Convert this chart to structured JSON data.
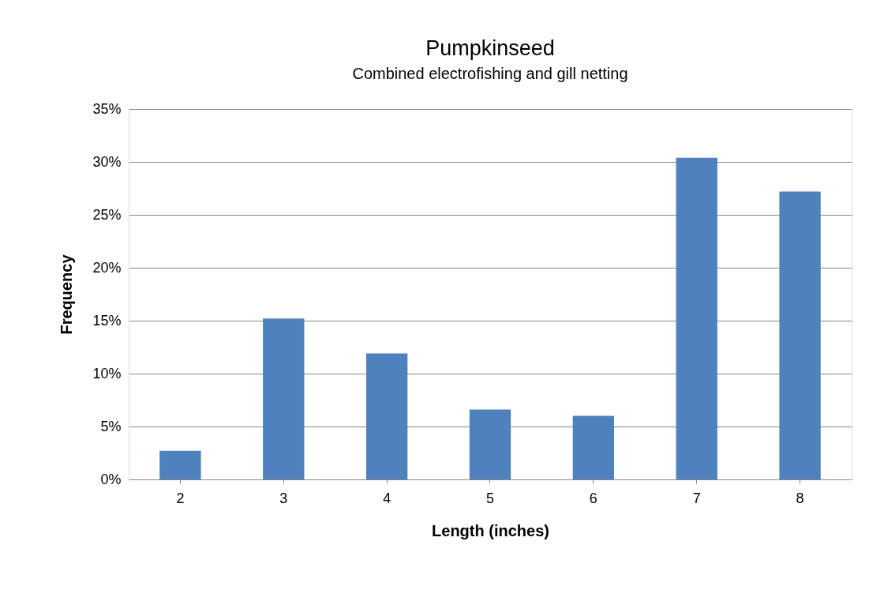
{
  "chart_data": {
    "type": "bar",
    "title": "Pumpkinseed",
    "subtitle": "Combined electrofishing and gill netting",
    "xlabel": "Length (inches)",
    "ylabel": "Frequency",
    "categories": [
      "2",
      "3",
      "4",
      "5",
      "6",
      "7",
      "8"
    ],
    "values": [
      2.7,
      15.2,
      11.9,
      6.6,
      6.0,
      30.4,
      27.2
    ],
    "color": "#4f81bd",
    "ylim": [
      0,
      35
    ],
    "yticks": [
      {
        "value": 0,
        "label": "0%"
      },
      {
        "value": 5,
        "label": "5%"
      },
      {
        "value": 10,
        "label": "10%"
      },
      {
        "value": 15,
        "label": "15%"
      },
      {
        "value": 20,
        "label": "20%"
      },
      {
        "value": 25,
        "label": "25%"
      },
      {
        "value": 30,
        "label": "30%"
      },
      {
        "value": 35,
        "label": "35%"
      }
    ],
    "grid": "y"
  }
}
